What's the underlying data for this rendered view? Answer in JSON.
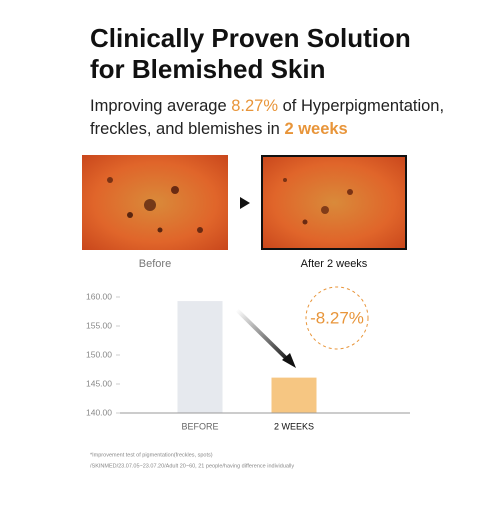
{
  "header": {
    "title": [
      "Clinically Proven Solution",
      "for Blemished Skin"
    ],
    "subtitle": [
      "Improving average ",
      "8.27%",
      " of Hyperpigmentation,",
      "freckles, and blemishes in ",
      "2 weeks"
    ]
  },
  "images": {
    "before_label": "Before",
    "after_label": "After 2 weeks"
  },
  "chart_data": {
    "type": "bar",
    "categories": [
      "BEFORE",
      "2 WEEKS"
    ],
    "values": [
      159.3,
      146.1
    ],
    "colors": [
      "#e6e9ee",
      "#f6c682"
    ],
    "annotation": "-8.27%",
    "ylim": [
      140,
      161
    ],
    "yticks": [
      {
        "value": 140,
        "label": "140.00"
      },
      {
        "value": 145,
        "label": "145.00"
      },
      {
        "value": 150,
        "label": "150.00"
      },
      {
        "value": 155,
        "label": "155.00"
      },
      {
        "value": 160,
        "label": "160.00"
      }
    ]
  },
  "footnotes": [
    "*Improvement test of pigmentation(freckles, spots)",
    "/SKINMED/23.07.05~23.07.20/Adult 20~60, 21 people/having difference individually"
  ]
}
